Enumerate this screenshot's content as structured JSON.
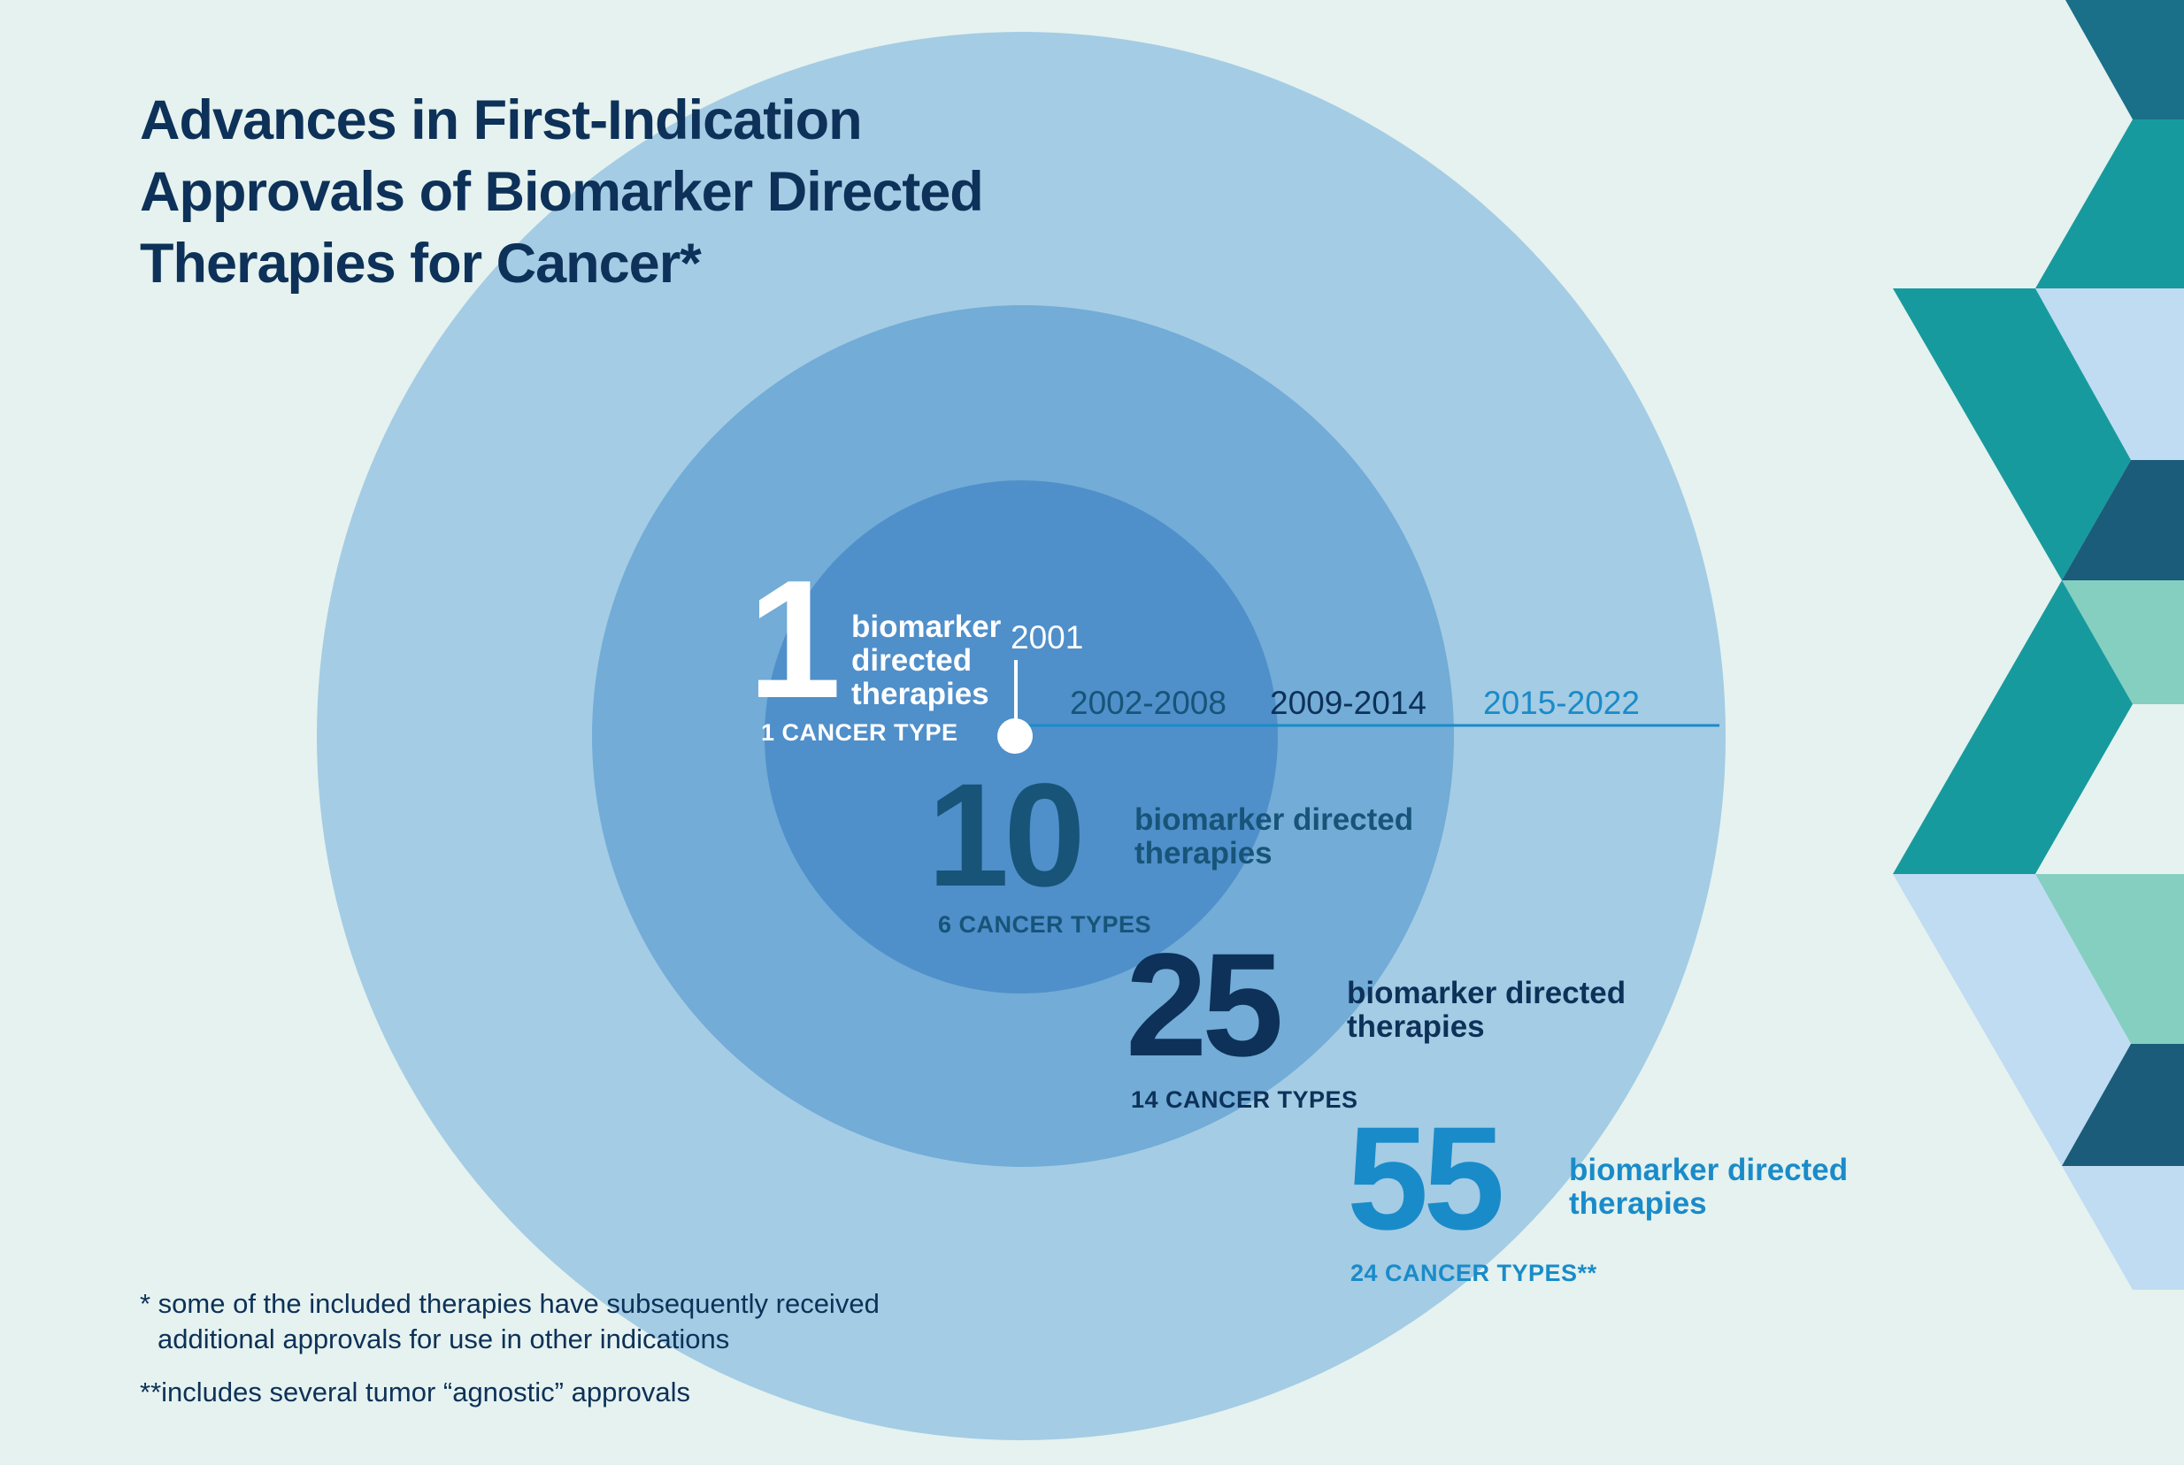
{
  "title": {
    "line1": "Advances in First-Indication",
    "line2": "Approvals of Biomarker Directed",
    "line3": "Therapies for Cancer*"
  },
  "timeline": {
    "start_label": "2001",
    "periods": [
      "2002-2008",
      "2009-2014",
      "2015-2022"
    ]
  },
  "stages": [
    {
      "count": "1",
      "desc_lines": [
        "biomarker",
        "directed",
        "therapies"
      ],
      "cancer_types": "1 CANCER TYPE",
      "color": "#ffffff"
    },
    {
      "count": "10",
      "desc_lines": [
        "biomarker directed",
        "therapies"
      ],
      "cancer_types": "6 CANCER TYPES",
      "color": "#175478"
    },
    {
      "count": "25",
      "desc_lines": [
        "biomarker directed",
        "therapies"
      ],
      "cancer_types": "14 CANCER TYPES",
      "color": "#0d3158"
    },
    {
      "count": "55",
      "desc_lines": [
        "biomarker directed",
        "therapies"
      ],
      "cancer_types": "24 CANCER TYPES**",
      "color": "#1a8bc9"
    }
  ],
  "footnotes": {
    "note1_line1": "* some of the included therapies have subsequently received",
    "note1_line2": "additional approvals for use in other indications",
    "note2": "**includes several tumor “agnostic” approvals"
  },
  "colors": {
    "background": "#e5f2ef",
    "ring_outer": "#a4cce4",
    "ring_middle": "#72acd7",
    "ring_inner": "#4f8fca",
    "deco_teal": "#179a9e",
    "deco_dark": "#1a5c7a",
    "deco_mint": "#85cfc1",
    "deco_light": "#c0dcf2"
  }
}
